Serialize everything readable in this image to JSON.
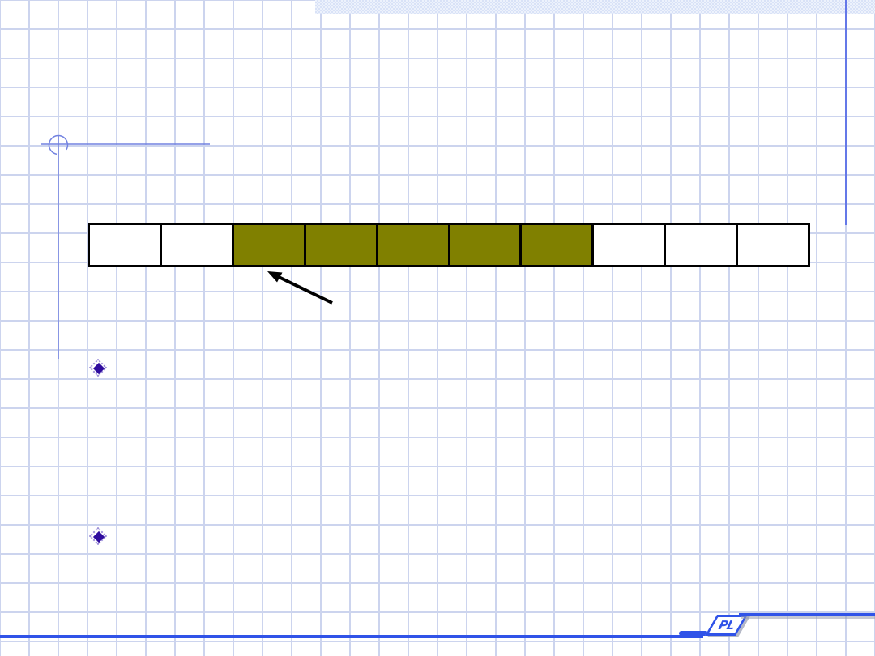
{
  "slide": {
    "logo_text": "PL"
  },
  "colors": {
    "grid_line": "#ccd4ee",
    "accent_blue": "#3053e8",
    "deco_line_blue": "#7282e0",
    "right_rule_blue": "#6478e8",
    "top_bar_blue_1": "#d9e2f7",
    "top_bar_blue_2": "#edf2fc",
    "bullet_fill": "#2f0c9e",
    "bullet_edge": "#9c8fd9",
    "cell_filled": "#808000",
    "cell_empty": "#ffffff",
    "cell_border": "#000000",
    "arrow_color": "#000000"
  },
  "array_diagram": {
    "cell_count": 10,
    "filled_range": "cells 3 to 7",
    "cells": [
      {
        "index": 1,
        "filled": false
      },
      {
        "index": 2,
        "filled": false
      },
      {
        "index": 3,
        "filled": true
      },
      {
        "index": 4,
        "filled": true
      },
      {
        "index": 5,
        "filled": true
      },
      {
        "index": 6,
        "filled": true
      },
      {
        "index": 7,
        "filled": true
      },
      {
        "index": 8,
        "filled": false
      },
      {
        "index": 9,
        "filled": false
      },
      {
        "index": 10,
        "filled": false
      }
    ]
  },
  "bullets": [
    {
      "label": ""
    },
    {
      "label": ""
    }
  ]
}
